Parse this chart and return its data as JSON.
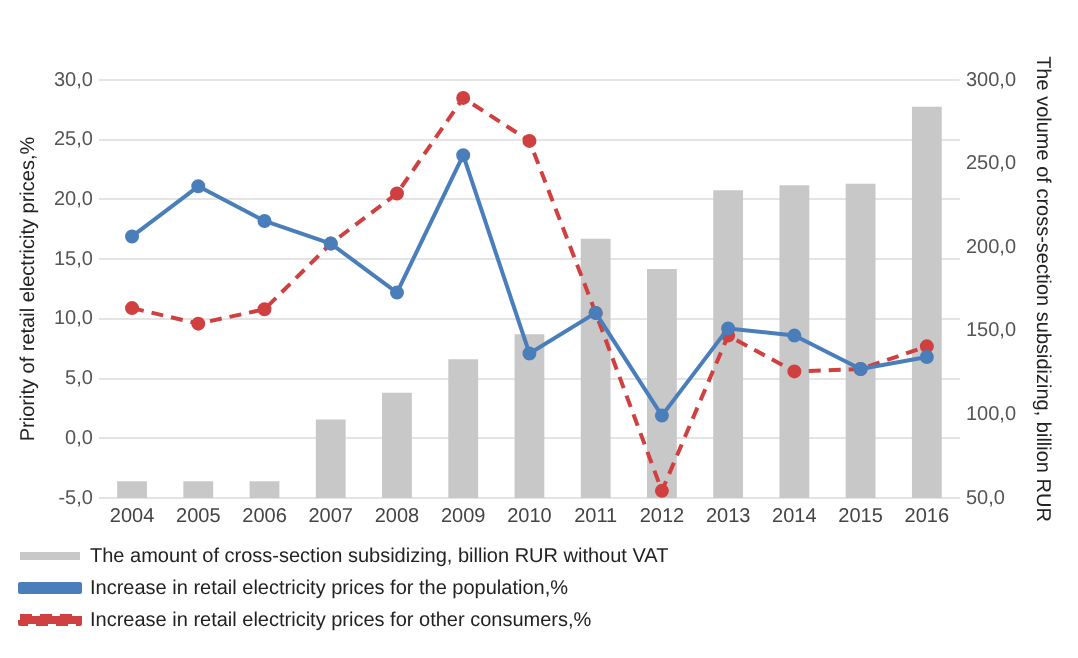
{
  "chart_data": {
    "type": "bar",
    "categories": [
      "2004",
      "2005",
      "2006",
      "2007",
      "2008",
      "2009",
      "2010",
      "2011",
      "2012",
      "2013",
      "2014",
      "2015",
      "2016"
    ],
    "ylabel": "Priority of retail electricity prices,%",
    "y2label": "The volume of cross-section subsidizing, billion RUR",
    "ylim": [
      -5,
      30
    ],
    "yticks": [
      {
        "value": -5,
        "label": "-5,0"
      },
      {
        "value": 0,
        "label": "0,0"
      },
      {
        "value": 5,
        "label": "5,0"
      },
      {
        "value": 10,
        "label": "10,0"
      },
      {
        "value": 15,
        "label": "15,0"
      },
      {
        "value": 20,
        "label": "20,0"
      },
      {
        "value": 25,
        "label": "25,0"
      },
      {
        "value": 30,
        "label": "30,0"
      }
    ],
    "y2lim": [
      50,
      300
    ],
    "y2ticks": [
      {
        "value": 50,
        "label": "50,0"
      },
      {
        "value": 100,
        "label": "100,0"
      },
      {
        "value": 150,
        "label": "150,0"
      },
      {
        "value": 200,
        "label": "200,0"
      },
      {
        "value": 250,
        "label": "250,0"
      },
      {
        "value": 300,
        "label": "300,0"
      }
    ],
    "grid": "y",
    "legend": "bottom",
    "marker": "circle",
    "series": [
      {
        "name": "The amount of cross-section subsidizing, billion RUR without VAT",
        "axis": "y2",
        "color": "#c8c8c8",
        "values": [
          60,
          60,
          60,
          97,
          113,
          133,
          148,
          205,
          187,
          234,
          237,
          238,
          284
        ]
      },
      {
        "name": "Increase in retail electricity prices for the population,%",
        "type": "line",
        "line_style": "solid",
        "color": "#4a7ebb",
        "values": [
          16.9,
          21.1,
          18.2,
          16.3,
          12.2,
          23.7,
          7.1,
          10.5,
          1.9,
          9.2,
          8.6,
          5.8,
          6.8
        ]
      },
      {
        "name": "Increase in retail electricity prices for other consumers,%",
        "type": "line",
        "line_style": "dashed",
        "color": "#d04040",
        "values": [
          10.9,
          9.6,
          10.8,
          16.3,
          20.5,
          28.5,
          24.9,
          10.5,
          -4.4,
          8.6,
          5.6,
          5.8,
          7.7
        ]
      }
    ]
  }
}
